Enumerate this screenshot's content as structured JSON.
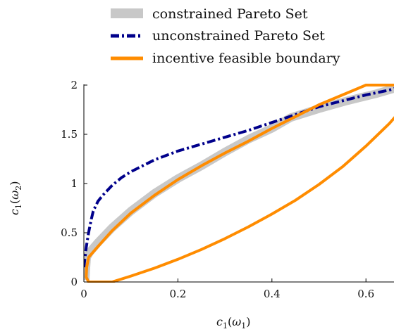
{
  "chart_data": {
    "type": "line",
    "title": "",
    "xlabel_main": "c",
    "xlabel_sub": "1",
    "xlabel_arg_open": "(",
    "xlabel_arg": "ω",
    "xlabel_arg_sub": "1",
    "xlabel_arg_close": ")",
    "ylabel_main": "c",
    "ylabel_sub": "1",
    "ylabel_arg_open": "(",
    "ylabel_arg": "ω",
    "ylabel_arg_sub": "2",
    "ylabel_arg_close": ")",
    "xlim": [
      0,
      0.67
    ],
    "ylim": [
      0,
      2.0
    ],
    "x_ticks": [
      0,
      0.2,
      0.4,
      0.6
    ],
    "x_tick_labels": [
      "0",
      "0.2",
      "0.4",
      "0.6"
    ],
    "y_ticks": [
      0,
      0.5,
      1,
      1.5,
      2
    ],
    "y_tick_labels": [
      "0",
      "0.5",
      "1",
      "1.5",
      "2"
    ],
    "grid": false,
    "legend_position": "top-right",
    "series": [
      {
        "name": "constrained Pareto Set",
        "color": "#c8c8c8",
        "style": "thick-band",
        "points": [
          [
            0.003,
            0.02
          ],
          [
            0.004,
            0.12
          ],
          [
            0.006,
            0.25
          ],
          [
            0.012,
            0.3
          ],
          [
            0.03,
            0.4
          ],
          [
            0.06,
            0.55
          ],
          [
            0.1,
            0.72
          ],
          [
            0.15,
            0.9
          ],
          [
            0.2,
            1.05
          ],
          [
            0.25,
            1.18
          ],
          [
            0.3,
            1.32
          ],
          [
            0.35,
            1.45
          ],
          [
            0.4,
            1.56
          ],
          [
            0.44,
            1.67
          ],
          [
            0.5,
            1.76
          ],
          [
            0.56,
            1.84
          ],
          [
            0.62,
            1.91
          ],
          [
            0.67,
            1.98
          ]
        ]
      },
      {
        "name": "unconstrained Pareto Set",
        "color": "#00008b",
        "style": "dash-dot",
        "points": [
          [
            0.0,
            0.15
          ],
          [
            0.005,
            0.35
          ],
          [
            0.01,
            0.5
          ],
          [
            0.015,
            0.62
          ],
          [
            0.02,
            0.72
          ],
          [
            0.03,
            0.82
          ],
          [
            0.04,
            0.88
          ],
          [
            0.06,
            0.98
          ],
          [
            0.08,
            1.06
          ],
          [
            0.1,
            1.12
          ],
          [
            0.15,
            1.24
          ],
          [
            0.2,
            1.33
          ],
          [
            0.25,
            1.4
          ],
          [
            0.3,
            1.47
          ],
          [
            0.35,
            1.54
          ],
          [
            0.4,
            1.62
          ],
          [
            0.45,
            1.7
          ],
          [
            0.5,
            1.78
          ],
          [
            0.55,
            1.84
          ],
          [
            0.6,
            1.9
          ],
          [
            0.65,
            1.95
          ],
          [
            0.67,
            1.98
          ]
        ]
      },
      {
        "name": "incentive feasible boundary",
        "color": "#ff8c00",
        "style": "solid",
        "points": [
          [
            0.06,
            0.0
          ],
          [
            0.1,
            0.06
          ],
          [
            0.15,
            0.14
          ],
          [
            0.2,
            0.23
          ],
          [
            0.25,
            0.33
          ],
          [
            0.3,
            0.44
          ],
          [
            0.35,
            0.56
          ],
          [
            0.4,
            0.69
          ],
          [
            0.45,
            0.83
          ],
          [
            0.5,
            0.99
          ],
          [
            0.55,
            1.17
          ],
          [
            0.6,
            1.38
          ],
          [
            0.65,
            1.61
          ],
          [
            0.67,
            1.72
          ]
        ]
      },
      {
        "name": "",
        "color": "#ff8c00",
        "style": "solid",
        "points": [
          [
            0.06,
            0.0
          ],
          [
            0.01,
            0.0
          ],
          [
            0.005,
            0.05
          ],
          [
            0.006,
            0.15
          ],
          [
            0.01,
            0.25
          ],
          [
            0.03,
            0.36
          ],
          [
            0.06,
            0.52
          ],
          [
            0.1,
            0.7
          ],
          [
            0.15,
            0.88
          ],
          [
            0.2,
            1.04
          ],
          [
            0.25,
            1.18
          ],
          [
            0.3,
            1.31
          ],
          [
            0.35,
            1.43
          ],
          [
            0.4,
            1.56
          ],
          [
            0.45,
            1.68
          ],
          [
            0.5,
            1.8
          ],
          [
            0.55,
            1.9
          ],
          [
            0.6,
            2.0
          ],
          [
            0.67,
            2.0
          ]
        ]
      }
    ],
    "legend": [
      {
        "label": "constrained Pareto Set",
        "color": "#c8c8c8",
        "style": "band"
      },
      {
        "label": "unconstrained Pareto Set",
        "color": "#00008b",
        "style": "dash-dot"
      },
      {
        "label": "incentive feasible boundary",
        "color": "#ff8c00",
        "style": "solid"
      }
    ]
  }
}
